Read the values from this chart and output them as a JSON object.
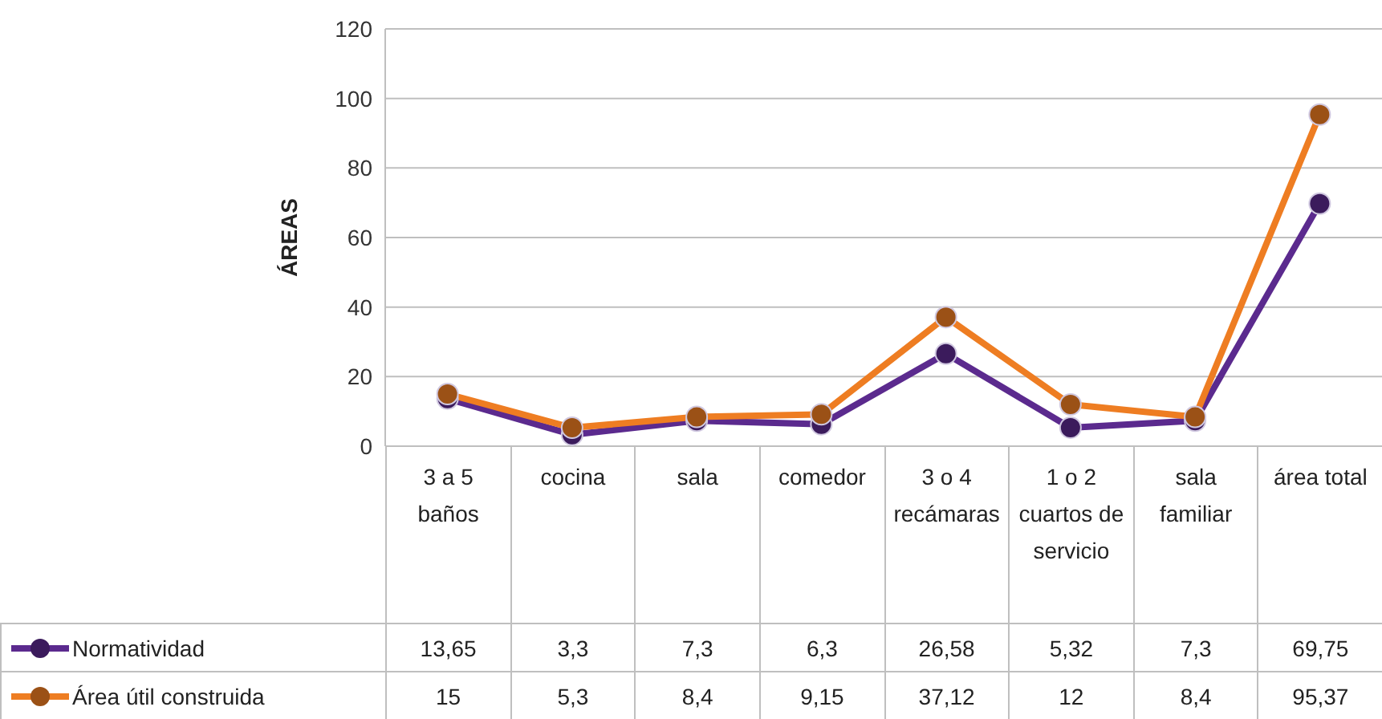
{
  "chart_data": {
    "type": "line",
    "ylabel": "ÁREAS",
    "categories": [
      "3 a 5 baños",
      "cocina",
      "sala",
      "comedor",
      "3 o 4 recámaras",
      "1 o 2 cuartos de servicio",
      "sala familiar",
      "área total"
    ],
    "series": [
      {
        "name": "Normatividad",
        "color": "#5b2a8e",
        "values": [
          13.65,
          3.3,
          7.3,
          6.3,
          26.58,
          5.32,
          7.3,
          69.75
        ],
        "value_labels": [
          "13,65",
          "3,3",
          "7,3",
          "6,3",
          "26,58",
          "5,32",
          "7,3",
          "69,75"
        ]
      },
      {
        "name": "Área útil construida",
        "color": "#ee7d22",
        "values": [
          15,
          5.3,
          8.4,
          9.15,
          37.12,
          12,
          8.4,
          95.37
        ],
        "value_labels": [
          "15",
          "5,3",
          "8,4",
          "9,15",
          "37,12",
          "12",
          "8,4",
          "95,37"
        ]
      }
    ],
    "ylim": [
      0,
      120
    ],
    "yticks": [
      0,
      20,
      40,
      60,
      80,
      100,
      120
    ],
    "grid": "y",
    "marker": "circle",
    "line_style": "solid",
    "legend": "bottom"
  }
}
